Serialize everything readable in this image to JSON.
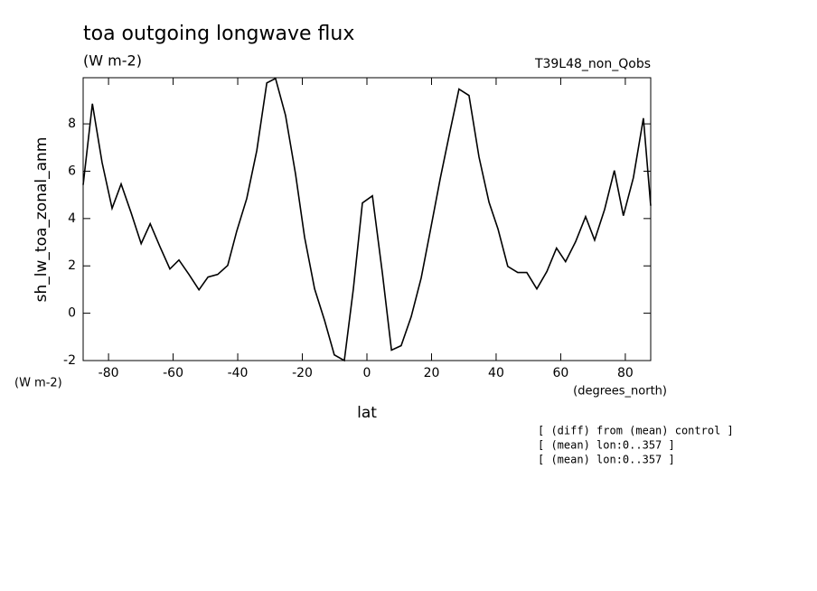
{
  "chart_data": {
    "type": "line",
    "title": "toa outgoing longwave flux",
    "units": "(W m-2)",
    "dataset": "T39L48_non_Qobs",
    "y_label": "sh_lw_toa_zonal_anm",
    "y_units": "(W m-2)",
    "x_label": "lat",
    "x_units": "(degrees_north)",
    "notes": [
      "[ (diff) from (mean) control ]",
      "[ (mean) lon:0..357 ]",
      "[ (mean) lon:0..357 ]"
    ],
    "x": [
      -87.86,
      -85.0,
      -82.0,
      -78.9,
      -76.1,
      -73.0,
      -69.9,
      -67.1,
      -64.1,
      -61.0,
      -58.2,
      -55.1,
      -52.0,
      -49.2,
      -46.2,
      -43.1,
      -40.3,
      -37.2,
      -34.1,
      -31.0,
      -28.3,
      -25.2,
      -22.1,
      -19.3,
      -16.2,
      -13.1,
      -10.1,
      -7.0,
      -4.2,
      -1.4,
      1.7,
      4.8,
      7.6,
      10.6,
      13.7,
      16.8,
      19.6,
      22.7,
      25.7,
      28.5,
      31.6,
      34.7,
      37.8,
      40.6,
      43.6,
      46.7,
      49.5,
      52.6,
      55.7,
      58.7,
      61.5,
      64.6,
      67.7,
      70.5,
      73.6,
      76.6,
      79.4,
      82.5,
      85.6,
      87.86
    ],
    "series": [
      {
        "name": "sh_lw_toa_zonal_anm",
        "color": "#000000",
        "values": [
          5.42,
          8.85,
          6.37,
          4.43,
          5.46,
          4.24,
          2.94,
          3.78,
          2.82,
          1.87,
          2.25,
          1.64,
          0.99,
          1.53,
          1.64,
          2.02,
          3.47,
          4.85,
          6.87,
          9.73,
          9.92,
          8.36,
          5.88,
          3.21,
          1.03,
          -0.31,
          -1.76,
          -2.0,
          1.03,
          4.66,
          4.96,
          1.68,
          -1.56,
          -1.37,
          -0.15,
          1.49,
          3.47,
          5.69,
          7.67,
          9.47,
          9.2,
          6.6,
          4.69,
          3.55,
          1.98,
          1.72,
          1.72,
          1.03,
          1.76,
          2.75,
          2.18,
          3.02,
          4.08,
          3.09,
          4.39,
          6.03,
          4.12,
          5.73,
          8.24,
          4.54
        ]
      }
    ],
    "xlim": [
      -87.86,
      87.86
    ],
    "ylim": [
      -2,
      9.95
    ],
    "xticks": [
      -80,
      -60,
      -40,
      -20,
      0,
      20,
      40,
      60,
      80
    ],
    "yticks": [
      -2,
      0,
      2,
      4,
      6,
      8
    ]
  }
}
